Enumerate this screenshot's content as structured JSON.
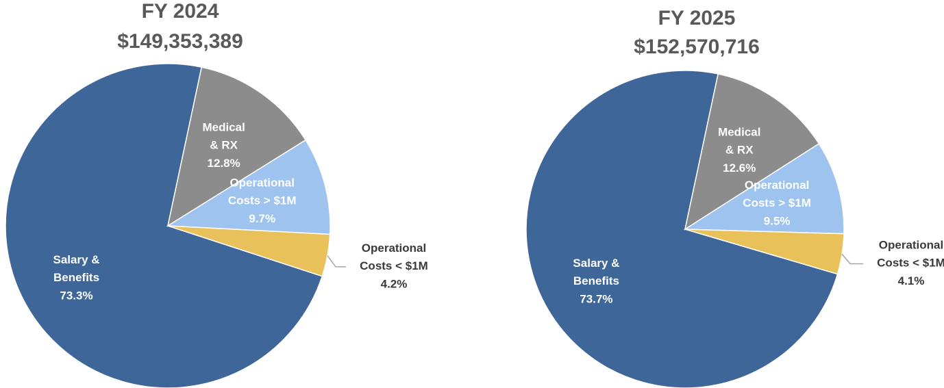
{
  "chart_data": [
    {
      "type": "pie",
      "title": "FY 2024",
      "subtitle": "$149,353,389",
      "categories": [
        "Salary &\nBenefits",
        "Medical\n& RX",
        "Operational\nCosts > $1M",
        "Operational\nCosts < $1M"
      ],
      "values": [
        73.3,
        12.8,
        9.7,
        4.2
      ],
      "value_labels": [
        "73.3%",
        "12.8%",
        "9.7%",
        "4.2%"
      ],
      "colors": [
        "#3e6699",
        "#8c8c8c",
        "#9dc3ee",
        "#e8c15a"
      ]
    },
    {
      "type": "pie",
      "title": "FY 2025",
      "subtitle": "$152,570,716",
      "categories": [
        "Salary &\nBenefits",
        "Medical\n& RX",
        "Operational\nCosts > $1M",
        "Operational\nCosts < $1M"
      ],
      "values": [
        73.7,
        12.6,
        9.5,
        4.1
      ],
      "value_labels": [
        "73.7%",
        "12.6%",
        "9.5%",
        "4.1%"
      ],
      "colors": [
        "#3e6699",
        "#8c8c8c",
        "#9dc3ee",
        "#e8c15a"
      ]
    }
  ]
}
